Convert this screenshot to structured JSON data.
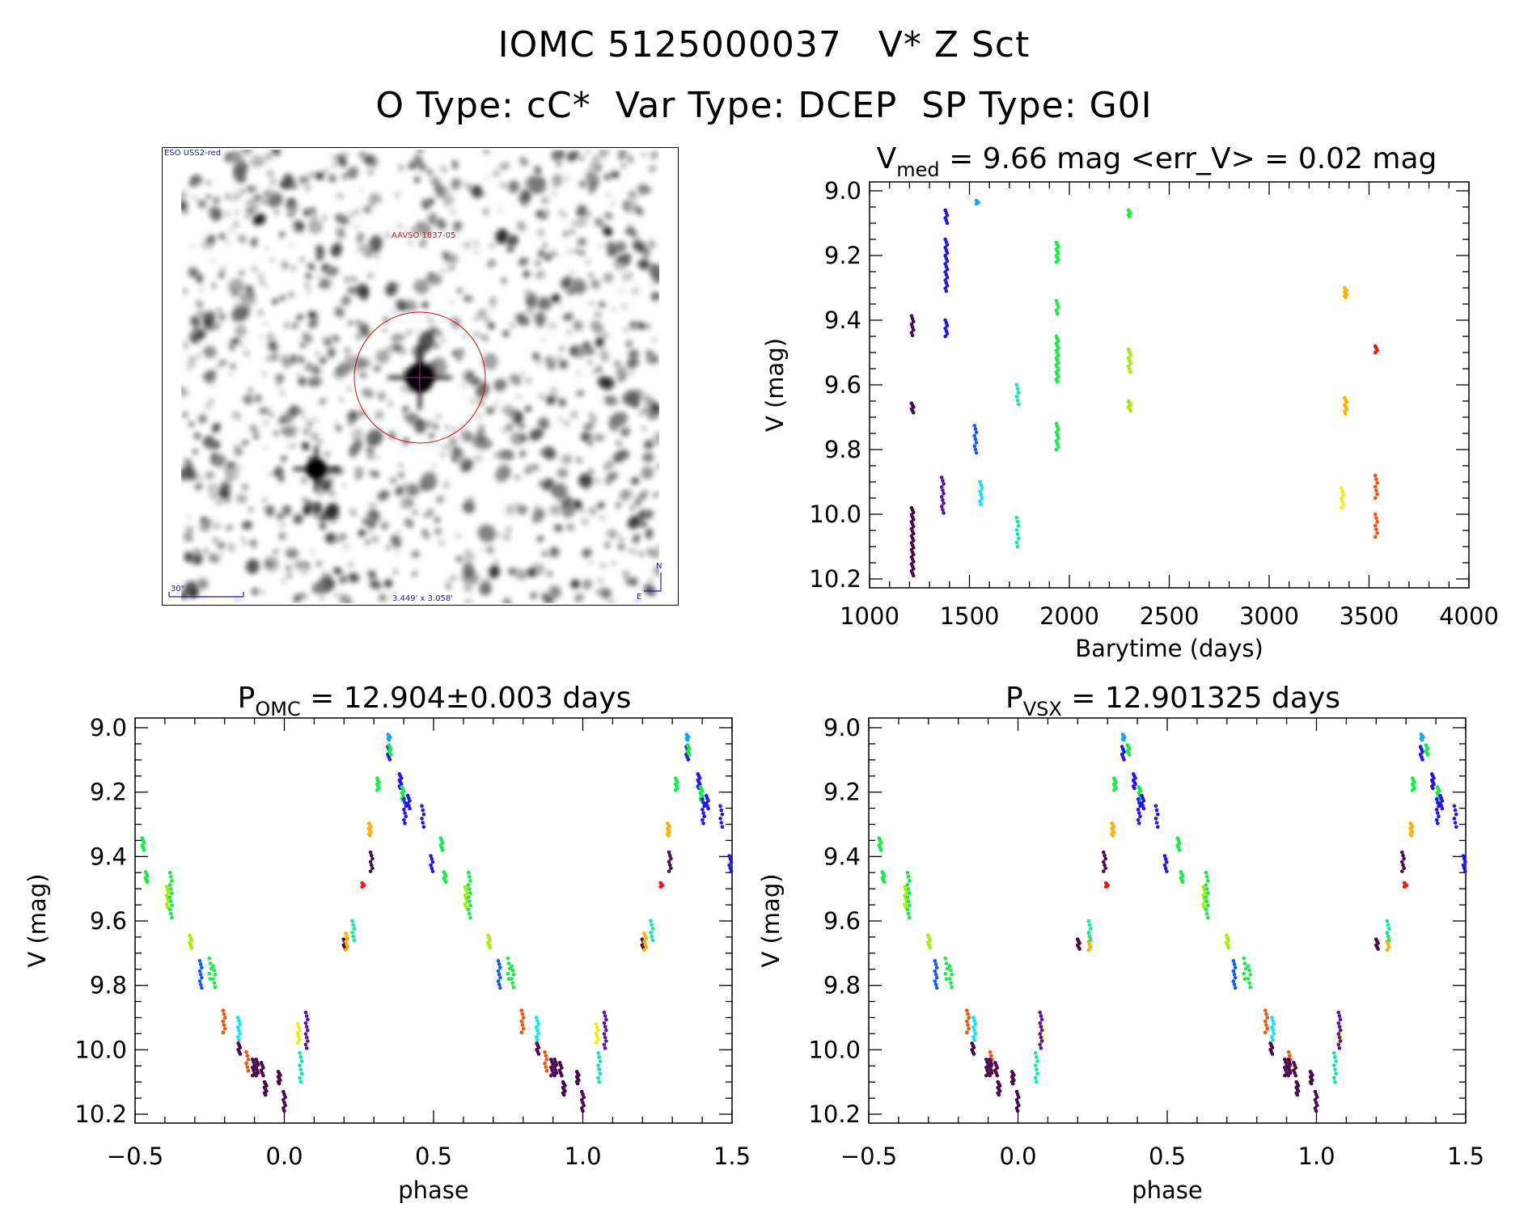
{
  "header": {
    "title": "IOMC 5125000037   V* Z Sct",
    "subtitle": "O Type: cC*  Var Type: DCEP  SP Type: G0I"
  },
  "finder": {
    "survey": "ESO USS2-red",
    "target_label": "AAVSO 1837-05",
    "scale_label": "30\"",
    "fov_label": "3.449' x 3.058'",
    "north": "N",
    "east": "E"
  },
  "colors": {
    "dkpurple": "#4a0a50",
    "violet": "#5a10a8",
    "blue": "#2414f0",
    "blue2": "#1058ff",
    "sky": "#10a8ff",
    "cyan": "#00e8ff",
    "teal": "#00f0a0",
    "green": "#10f040",
    "lime": "#a0f000",
    "yellow": "#f0f000",
    "orange": "#ffb000",
    "orangered": "#ff5000",
    "red": "#ff1010"
  },
  "chart_data": [
    {
      "type": "scatter",
      "title_main": "V",
      "title_sub": "med",
      "title_rest": " = 9.66 mag <err_V> = 0.02 mag",
      "xlabel": "Barytime (days)",
      "ylabel": "V (mag)",
      "xlim": [
        1000,
        4000
      ],
      "ylim": [
        10.2,
        9.0
      ],
      "xticks": [
        "1000",
        "1500",
        "2000",
        "2500",
        "3000",
        "3500",
        "4000"
      ],
      "yticks": [
        "9.0",
        "9.2",
        "9.4",
        "9.6",
        "9.8",
        "10.0",
        "10.2"
      ],
      "cluster_format": [
        "time",
        "mag_min",
        "mag_max",
        "n_points",
        "color"
      ],
      "clusters": [
        [
          1215,
          9.387,
          9.447,
          8,
          "dkpurple"
        ],
        [
          1215,
          9.657,
          9.686,
          6,
          "dkpurple"
        ],
        [
          1215,
          9.98,
          10.19,
          30,
          "dkpurple"
        ],
        [
          1366,
          9.886,
          9.996,
          12,
          "violet"
        ],
        [
          1384,
          9.06,
          9.1,
          6,
          "blue"
        ],
        [
          1384,
          9.15,
          9.31,
          20,
          "blue"
        ],
        [
          1384,
          9.4,
          9.45,
          7,
          "blue"
        ],
        [
          1530,
          9.726,
          9.81,
          9,
          "blue2"
        ],
        [
          1540,
          9.03,
          9.04,
          4,
          "sky"
        ],
        [
          1558,
          9.9,
          9.97,
          8,
          "cyan"
        ],
        [
          1741,
          9.6,
          9.66,
          6,
          "teal"
        ],
        [
          1741,
          10.01,
          10.1,
          8,
          "teal"
        ],
        [
          1940,
          9.16,
          9.22,
          10,
          "green"
        ],
        [
          1940,
          9.34,
          9.38,
          5,
          "green"
        ],
        [
          1940,
          9.45,
          9.59,
          20,
          "green"
        ],
        [
          1940,
          9.72,
          9.8,
          10,
          "green"
        ],
        [
          2301,
          9.06,
          9.08,
          5,
          "green"
        ],
        [
          2301,
          9.49,
          9.56,
          9,
          "lime"
        ],
        [
          2301,
          9.65,
          9.68,
          6,
          "lime"
        ],
        [
          3367,
          9.92,
          9.98,
          7,
          "yellow"
        ],
        [
          3383,
          9.3,
          9.33,
          8,
          "orange"
        ],
        [
          3383,
          9.64,
          9.69,
          8,
          "orange"
        ],
        [
          3536,
          9.48,
          9.5,
          4,
          "red"
        ],
        [
          3536,
          9.88,
          9.95,
          7,
          "orangered"
        ],
        [
          3536,
          10.0,
          10.07,
          7,
          "orangered"
        ]
      ]
    },
    {
      "type": "scatter",
      "title_main": "P",
      "title_sub": "OMC",
      "title_rest": " = 12.904±0.003 days",
      "xlabel": "phase",
      "ylabel": "V (mag)",
      "xlim": [
        -0.5,
        1.5
      ],
      "ylim": [
        10.2,
        9.0
      ],
      "xticks": [
        "−0.5",
        "0.0",
        "0.5",
        "1.0",
        "1.5"
      ],
      "yticks": [
        "9.0",
        "9.2",
        "9.4",
        "9.6",
        "9.8",
        "10.0",
        "10.2"
      ],
      "cluster_format": [
        "phase",
        "mag_min",
        "mag_max",
        "n_points",
        "color"
      ],
      "repeat_cycles": 2,
      "clusters": [
        [
          -0.473,
          9.343,
          9.38,
          6,
          "green"
        ],
        [
          -0.462,
          9.448,
          9.479,
          6,
          "green"
        ],
        [
          -0.391,
          9.494,
          9.557,
          8,
          "lime"
        ],
        [
          -0.38,
          9.45,
          9.59,
          12,
          "green"
        ],
        [
          -0.314,
          9.645,
          9.683,
          6,
          "lime"
        ],
        [
          -0.28,
          9.724,
          9.808,
          9,
          "blue2"
        ],
        [
          -0.248,
          9.716,
          9.78,
          5,
          "green"
        ],
        [
          -0.235,
          9.74,
          9.806,
          6,
          "green"
        ],
        [
          -0.202,
          9.878,
          9.946,
          7,
          "orangered"
        ],
        [
          -0.152,
          9.9,
          9.97,
          8,
          "cyan"
        ],
        [
          -0.151,
          9.98,
          10.013,
          6,
          "dkpurple"
        ],
        [
          -0.124,
          10.007,
          10.065,
          6,
          "orangered"
        ],
        [
          -0.103,
          10.03,
          10.08,
          7,
          "dkpurple"
        ],
        [
          -0.091,
          10.03,
          10.08,
          7,
          "dkpurple"
        ],
        [
          -0.074,
          10.04,
          10.08,
          6,
          "dkpurple"
        ],
        [
          -0.063,
          10.1,
          10.14,
          8,
          "dkpurple"
        ],
        [
          -0.017,
          10.068,
          10.105,
          8,
          "dkpurple"
        ],
        [
          0.0,
          10.13,
          10.19,
          8,
          "dkpurple"
        ],
        [
          0.048,
          9.92,
          9.978,
          7,
          "yellow"
        ],
        [
          0.055,
          10.01,
          10.1,
          8,
          "teal"
        ],
        [
          0.075,
          9.884,
          9.995,
          11,
          "violet"
        ],
        [
          0.202,
          9.657,
          9.687,
          6,
          "dkpurple"
        ],
        [
          0.209,
          9.638,
          9.69,
          7,
          "orange"
        ],
        [
          0.231,
          9.6,
          9.66,
          6,
          "teal"
        ],
        [
          0.264,
          9.482,
          9.494,
          4,
          "red"
        ],
        [
          0.287,
          9.297,
          9.335,
          8,
          "orange"
        ],
        [
          0.292,
          9.387,
          9.446,
          7,
          "dkpurple"
        ],
        [
          0.314,
          9.157,
          9.194,
          7,
          "green"
        ],
        [
          0.351,
          9.021,
          9.038,
          5,
          "sky"
        ],
        [
          0.35,
          9.059,
          9.099,
          6,
          "blue"
        ],
        [
          0.354,
          9.054,
          9.084,
          6,
          "green"
        ],
        [
          0.389,
          9.144,
          9.188,
          8,
          "blue"
        ],
        [
          0.397,
          9.184,
          9.226,
          8,
          "green"
        ],
        [
          0.404,
          9.222,
          9.297,
          8,
          "blue"
        ],
        [
          0.417,
          9.211,
          9.251,
          6,
          "blue"
        ],
        [
          0.464,
          9.243,
          9.308,
          6,
          "blue"
        ],
        [
          0.494,
          9.398,
          9.446,
          6,
          "blue"
        ]
      ]
    },
    {
      "type": "scatter",
      "title_main": "P",
      "title_sub": "VSX",
      "title_rest": " = 12.901325 days",
      "xlabel": "phase",
      "ylabel": "V (mag)",
      "xlim": [
        -0.5,
        1.5
      ],
      "ylim": [
        10.2,
        9.0
      ],
      "xticks": [
        "−0.5",
        "0.0",
        "0.5",
        "1.0",
        "1.5"
      ],
      "yticks": [
        "9.0",
        "9.2",
        "9.4",
        "9.6",
        "9.8",
        "10.0",
        "10.2"
      ],
      "cluster_format": [
        "phase",
        "mag_min",
        "mag_max",
        "n_points",
        "color"
      ],
      "repeat_cycles": 2,
      "clusters": [
        [
          -0.462,
          9.343,
          9.38,
          6,
          "green"
        ],
        [
          -0.451,
          9.448,
          9.479,
          6,
          "green"
        ],
        [
          -0.376,
          9.494,
          9.557,
          8,
          "lime"
        ],
        [
          -0.367,
          9.45,
          9.59,
          12,
          "green"
        ],
        [
          -0.298,
          9.645,
          9.683,
          6,
          "lime"
        ],
        [
          -0.275,
          9.724,
          9.808,
          9,
          "blue2"
        ],
        [
          -0.24,
          9.716,
          9.78,
          5,
          "green"
        ],
        [
          -0.225,
          9.74,
          9.806,
          6,
          "green"
        ],
        [
          -0.168,
          9.878,
          9.946,
          7,
          "orangered"
        ],
        [
          -0.146,
          9.9,
          9.97,
          8,
          "cyan"
        ],
        [
          -0.151,
          9.98,
          10.013,
          6,
          "dkpurple"
        ],
        [
          -0.09,
          10.007,
          10.065,
          6,
          "orangered"
        ],
        [
          -0.103,
          10.03,
          10.08,
          7,
          "dkpurple"
        ],
        [
          -0.091,
          10.03,
          10.08,
          7,
          "dkpurple"
        ],
        [
          -0.073,
          10.04,
          10.08,
          6,
          "dkpurple"
        ],
        [
          -0.064,
          10.1,
          10.14,
          8,
          "dkpurple"
        ],
        [
          -0.017,
          10.068,
          10.105,
          8,
          "dkpurple"
        ],
        [
          -0.001,
          10.13,
          10.19,
          8,
          "dkpurple"
        ],
        [
          0.08,
          9.92,
          9.978,
          7,
          "yellow"
        ],
        [
          0.062,
          10.01,
          10.1,
          8,
          "teal"
        ],
        [
          0.077,
          9.884,
          9.995,
          11,
          "violet"
        ],
        [
          0.203,
          9.657,
          9.687,
          6,
          "dkpurple"
        ],
        [
          0.24,
          9.638,
          9.69,
          7,
          "orange"
        ],
        [
          0.24,
          9.6,
          9.66,
          6,
          "teal"
        ],
        [
          0.298,
          9.482,
          9.494,
          4,
          "red"
        ],
        [
          0.318,
          9.297,
          9.335,
          8,
          "orange"
        ],
        [
          0.29,
          9.387,
          9.446,
          7,
          "dkpurple"
        ],
        [
          0.325,
          9.157,
          9.194,
          7,
          "green"
        ],
        [
          0.354,
          9.021,
          9.038,
          5,
          "sky"
        ],
        [
          0.352,
          9.059,
          9.099,
          6,
          "blue"
        ],
        [
          0.37,
          9.054,
          9.084,
          6,
          "green"
        ],
        [
          0.39,
          9.144,
          9.188,
          8,
          "blue"
        ],
        [
          0.408,
          9.184,
          9.226,
          8,
          "green"
        ],
        [
          0.406,
          9.222,
          9.297,
          8,
          "blue"
        ],
        [
          0.418,
          9.211,
          9.251,
          6,
          "blue"
        ],
        [
          0.465,
          9.243,
          9.308,
          6,
          "blue"
        ],
        [
          0.495,
          9.398,
          9.446,
          6,
          "blue"
        ]
      ]
    }
  ]
}
